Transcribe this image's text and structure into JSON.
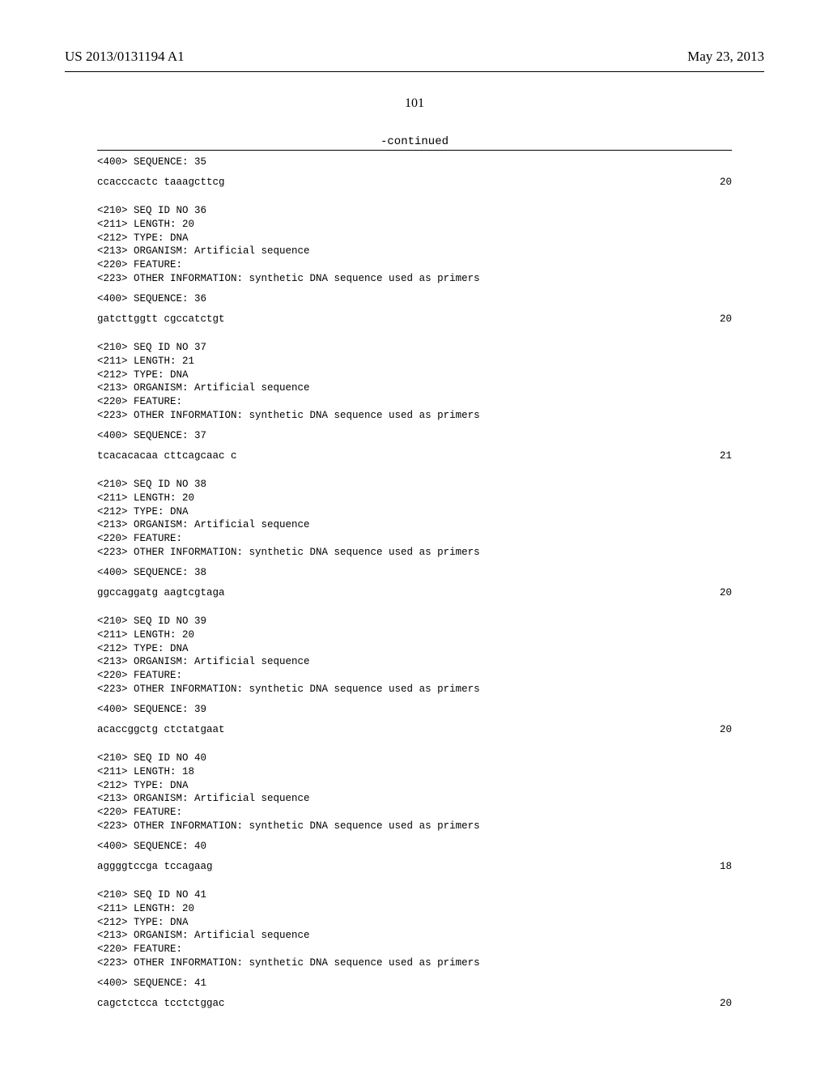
{
  "header": {
    "pub_number": "US 2013/0131194 A1",
    "pub_date": "May 23, 2013"
  },
  "page_number": "101",
  "continued_label": "-continued",
  "entries": [
    {
      "pre": "<400> SEQUENCE: 35",
      "seq": "ccacccactc taaagcttcg",
      "len": "20"
    },
    {
      "header": [
        "<210> SEQ ID NO 36",
        "<211> LENGTH: 20",
        "<212> TYPE: DNA",
        "<213> ORGANISM: Artificial sequence",
        "<220> FEATURE:",
        "<223> OTHER INFORMATION: synthetic DNA sequence used as primers"
      ],
      "pre": "<400> SEQUENCE: 36",
      "seq": "gatcttggtt cgccatctgt",
      "len": "20"
    },
    {
      "header": [
        "<210> SEQ ID NO 37",
        "<211> LENGTH: 21",
        "<212> TYPE: DNA",
        "<213> ORGANISM: Artificial sequence",
        "<220> FEATURE:",
        "<223> OTHER INFORMATION: synthetic DNA sequence used as primers"
      ],
      "pre": "<400> SEQUENCE: 37",
      "seq": "tcacacacaa cttcagcaac c",
      "len": "21"
    },
    {
      "header": [
        "<210> SEQ ID NO 38",
        "<211> LENGTH: 20",
        "<212> TYPE: DNA",
        "<213> ORGANISM: Artificial sequence",
        "<220> FEATURE:",
        "<223> OTHER INFORMATION: synthetic DNA sequence used as primers"
      ],
      "pre": "<400> SEQUENCE: 38",
      "seq": "ggccaggatg aagtcgtaga",
      "len": "20"
    },
    {
      "header": [
        "<210> SEQ ID NO 39",
        "<211> LENGTH: 20",
        "<212> TYPE: DNA",
        "<213> ORGANISM: Artificial sequence",
        "<220> FEATURE:",
        "<223> OTHER INFORMATION: synthetic DNA sequence used as primers"
      ],
      "pre": "<400> SEQUENCE: 39",
      "seq": "acaccggctg ctctatgaat",
      "len": "20"
    },
    {
      "header": [
        "<210> SEQ ID NO 40",
        "<211> LENGTH: 18",
        "<212> TYPE: DNA",
        "<213> ORGANISM: Artificial sequence",
        "<220> FEATURE:",
        "<223> OTHER INFORMATION: synthetic DNA sequence used as primers"
      ],
      "pre": "<400> SEQUENCE: 40",
      "seq": "aggggtccga tccagaag",
      "len": "18"
    },
    {
      "header": [
        "<210> SEQ ID NO 41",
        "<211> LENGTH: 20",
        "<212> TYPE: DNA",
        "<213> ORGANISM: Artificial sequence",
        "<220> FEATURE:",
        "<223> OTHER INFORMATION: synthetic DNA sequence used as primers"
      ],
      "pre": "<400> SEQUENCE: 41",
      "seq": "cagctctcca tcctctggac",
      "len": "20"
    }
  ]
}
